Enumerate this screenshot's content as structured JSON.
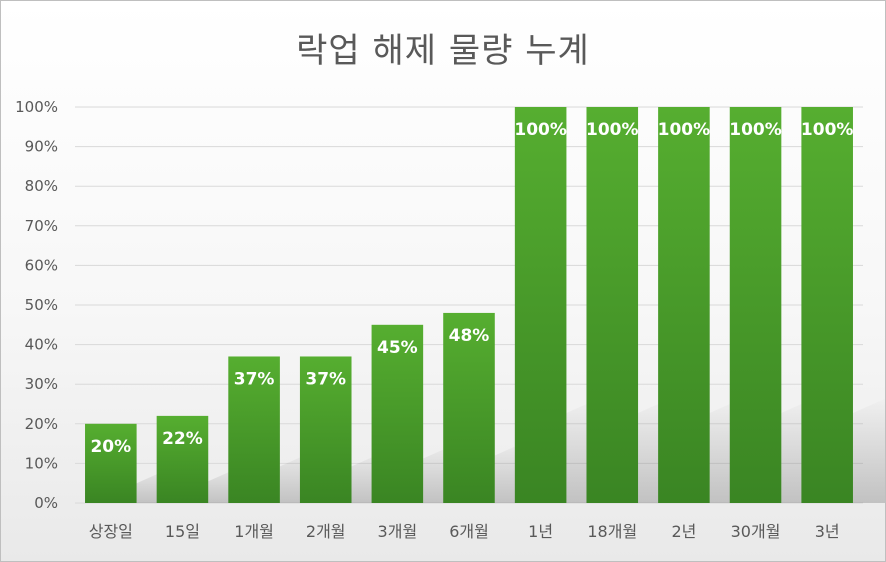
{
  "chart_data": {
    "type": "bar",
    "title": "락업 해제 물량 누계",
    "categories": [
      "상장일",
      "15일",
      "1개월",
      "2개월",
      "3개월",
      "6개월",
      "1년",
      "18개월",
      "2년",
      "30개월",
      "3년"
    ],
    "values": [
      20,
      22,
      37,
      37,
      45,
      48,
      100,
      100,
      100,
      100,
      100
    ],
    "data_labels": [
      "20%",
      "22%",
      "37%",
      "37%",
      "45%",
      "48%",
      "100%",
      "100%",
      "100%",
      "100%",
      "100%"
    ],
    "y_ticks": [
      "0%",
      "10%",
      "20%",
      "30%",
      "40%",
      "50%",
      "60%",
      "70%",
      "80%",
      "90%",
      "100%"
    ],
    "ylim": [
      0,
      100
    ],
    "grid": true,
    "legend": "none",
    "bar_color": "#4a9a2c"
  }
}
